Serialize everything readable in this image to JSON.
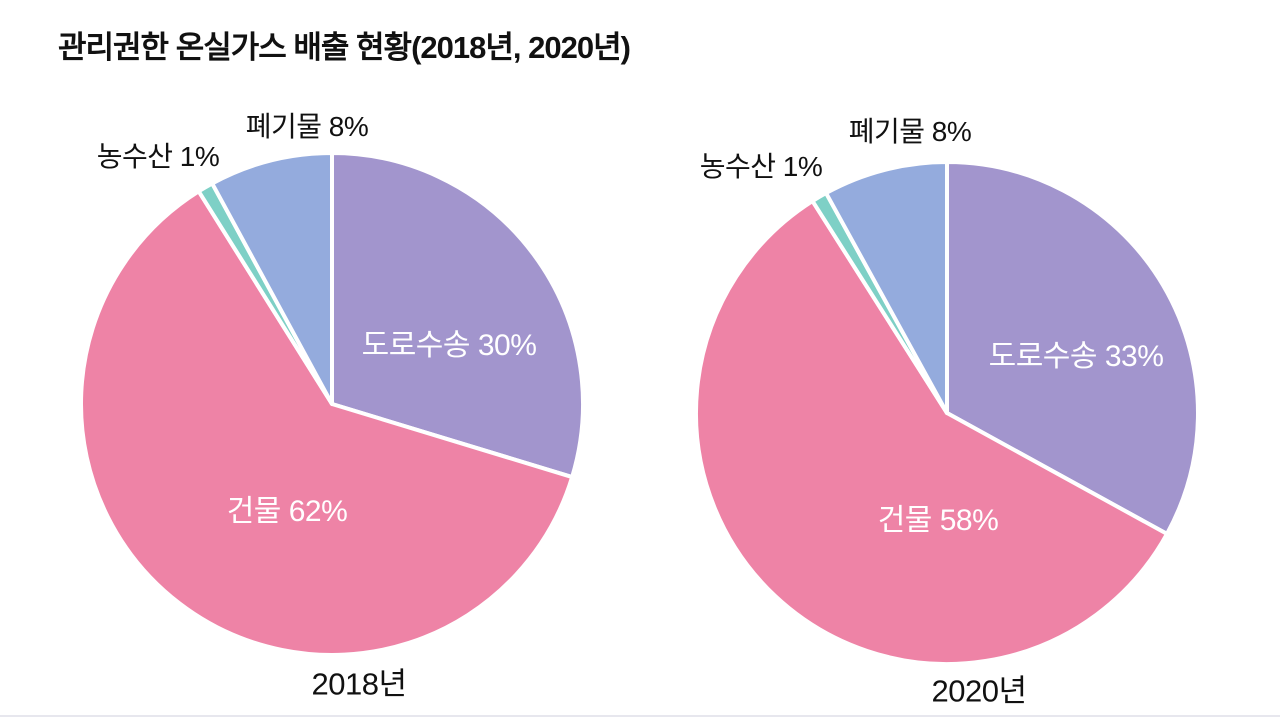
{
  "page": {
    "title": "관리권한 온실가스 배출 현황(2018년, 2020년)"
  },
  "chart_data": [
    {
      "type": "pie",
      "title": "2018년",
      "unit": "%",
      "start_angle": "top",
      "direction": "clockwise",
      "legend_position": "none",
      "slices": [
        {
          "label": "도로수송",
          "value": 30,
          "color": "#a295cd",
          "label_placement": "inside"
        },
        {
          "label": "건물",
          "value": 62,
          "color": "#ee83a6",
          "label_placement": "inside"
        },
        {
          "label": "농수산",
          "value": 1,
          "color": "#7ed0c6",
          "label_placement": "outside"
        },
        {
          "label": "폐기물",
          "value": 8,
          "color": "#94abdd",
          "label_placement": "outside"
        }
      ]
    },
    {
      "type": "pie",
      "title": "2020년",
      "unit": "%",
      "start_angle": "top",
      "direction": "clockwise",
      "legend_position": "none",
      "slices": [
        {
          "label": "도로수송",
          "value": 33,
          "color": "#a295cd",
          "label_placement": "inside"
        },
        {
          "label": "건물",
          "value": 58,
          "color": "#ee83a6",
          "label_placement": "inside"
        },
        {
          "label": "농수산",
          "value": 1,
          "color": "#7ed0c6",
          "label_placement": "outside"
        },
        {
          "label": "폐기물",
          "value": 8,
          "color": "#94abdd",
          "label_placement": "outside"
        }
      ]
    }
  ],
  "styles": {
    "separator_color": "#ffffff",
    "inside_label_color": "#ffffff",
    "outside_label_color": "#111111",
    "background": "#ffffff"
  }
}
